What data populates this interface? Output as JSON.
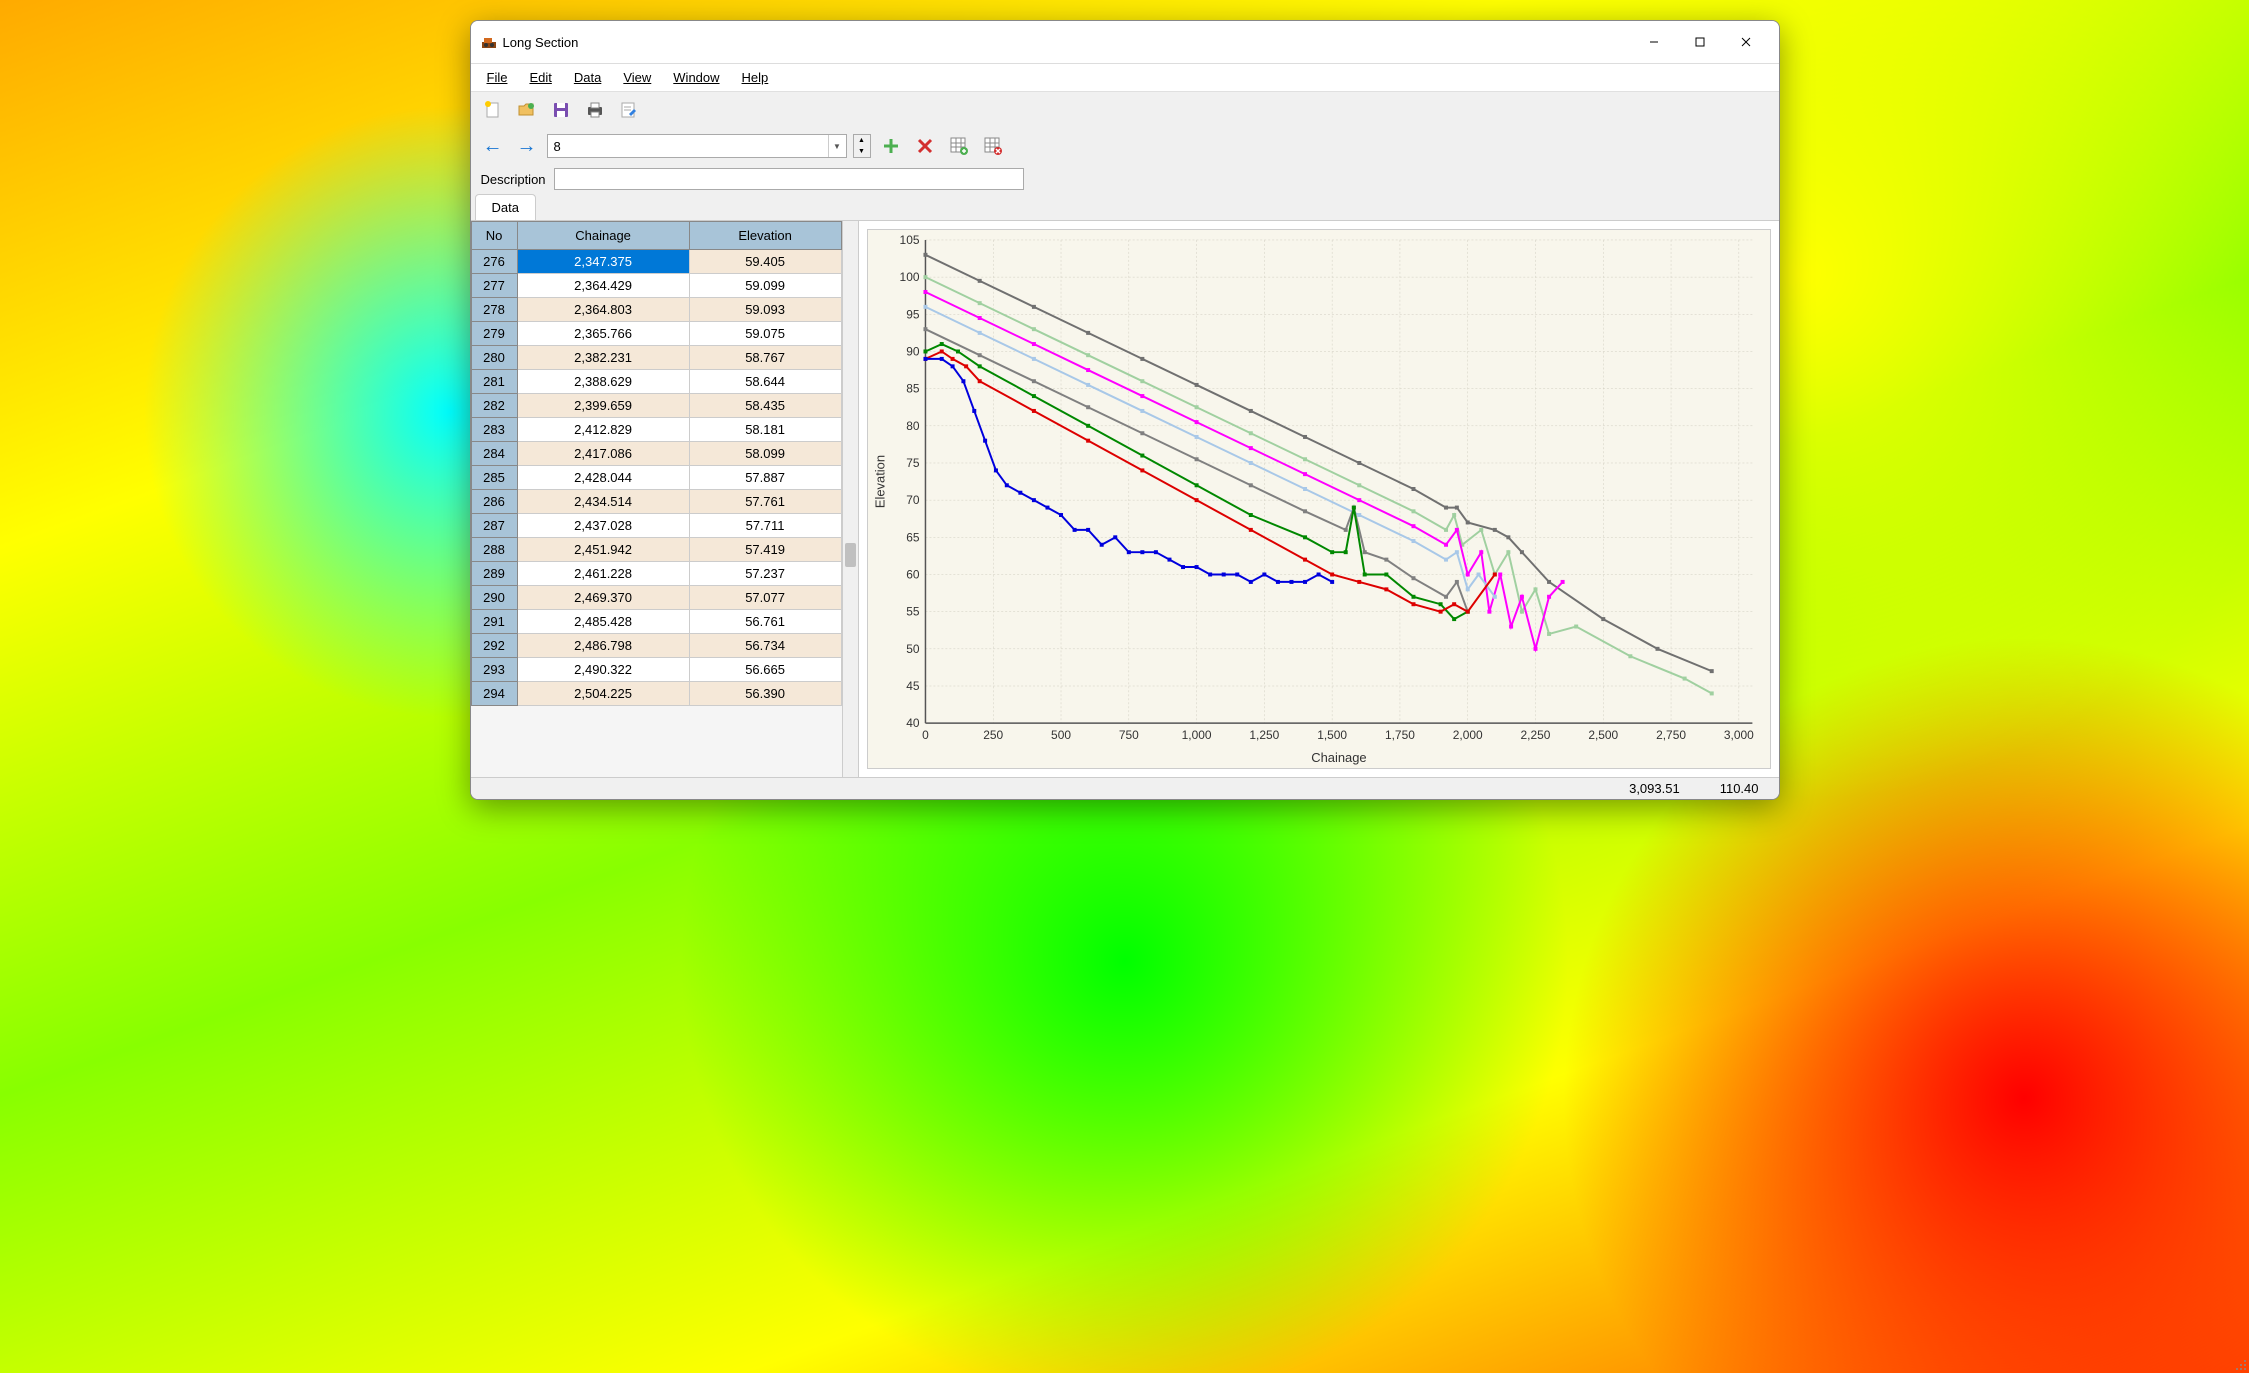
{
  "window": {
    "title": "Long Section"
  },
  "menu": {
    "file": "File",
    "edit": "Edit",
    "data": "Data",
    "view": "View",
    "window": "Window",
    "help": "Help"
  },
  "toolbar2": {
    "combo_value": "8"
  },
  "desc": {
    "label": "Description",
    "value": ""
  },
  "tab": {
    "data": "Data"
  },
  "table": {
    "columns": [
      "No",
      "Chainage",
      "Elevation"
    ],
    "rows": [
      {
        "no": "276",
        "chainage": "2,347.375",
        "elev": "59.405",
        "sel": true
      },
      {
        "no": "277",
        "chainage": "2,364.429",
        "elev": "59.099"
      },
      {
        "no": "278",
        "chainage": "2,364.803",
        "elev": "59.093"
      },
      {
        "no": "279",
        "chainage": "2,365.766",
        "elev": "59.075"
      },
      {
        "no": "280",
        "chainage": "2,382.231",
        "elev": "58.767"
      },
      {
        "no": "281",
        "chainage": "2,388.629",
        "elev": "58.644"
      },
      {
        "no": "282",
        "chainage": "2,399.659",
        "elev": "58.435"
      },
      {
        "no": "283",
        "chainage": "2,412.829",
        "elev": "58.181"
      },
      {
        "no": "284",
        "chainage": "2,417.086",
        "elev": "58.099"
      },
      {
        "no": "285",
        "chainage": "2,428.044",
        "elev": "57.887"
      },
      {
        "no": "286",
        "chainage": "2,434.514",
        "elev": "57.761"
      },
      {
        "no": "287",
        "chainage": "2,437.028",
        "elev": "57.711"
      },
      {
        "no": "288",
        "chainage": "2,451.942",
        "elev": "57.419"
      },
      {
        "no": "289",
        "chainage": "2,461.228",
        "elev": "57.237"
      },
      {
        "no": "290",
        "chainage": "2,469.370",
        "elev": "57.077"
      },
      {
        "no": "291",
        "chainage": "2,485.428",
        "elev": "56.761"
      },
      {
        "no": "292",
        "chainage": "2,486.798",
        "elev": "56.734"
      },
      {
        "no": "293",
        "chainage": "2,490.322",
        "elev": "56.665"
      },
      {
        "no": "294",
        "chainage": "2,504.225",
        "elev": "56.390"
      }
    ]
  },
  "chart": {
    "type": "line",
    "xlabel": "Chainage",
    "ylabel": "Elevation",
    "xlim": [
      0,
      3050
    ],
    "ylim": [
      40,
      105
    ],
    "xticks": [
      0,
      250,
      500,
      750,
      1000,
      1250,
      1500,
      1750,
      2000,
      2250,
      2500,
      2750,
      3000
    ],
    "xtick_labels": [
      "0",
      "250",
      "500",
      "750",
      "1,000",
      "1,250",
      "1,500",
      "1,750",
      "2,000",
      "2,250",
      "2,500",
      "2,750",
      "3,000"
    ],
    "yticks": [
      40,
      45,
      50,
      55,
      60,
      65,
      70,
      75,
      80,
      85,
      90,
      95,
      100,
      105
    ],
    "background_color": "#f8f6ec",
    "grid_color": "#d0cdc0",
    "axis_color": "#555555",
    "label_fontsize": 13,
    "tick_fontsize": 12,
    "line_width": 2,
    "marker_size": 2,
    "series": [
      {
        "name": "s1_gray_top",
        "color": "#707070",
        "data": [
          [
            0,
            103
          ],
          [
            200,
            99.5
          ],
          [
            400,
            96
          ],
          [
            600,
            92.5
          ],
          [
            800,
            89
          ],
          [
            1000,
            85.5
          ],
          [
            1200,
            82
          ],
          [
            1400,
            78.5
          ],
          [
            1600,
            75
          ],
          [
            1800,
            71.5
          ],
          [
            1920,
            69
          ],
          [
            1960,
            69
          ],
          [
            2000,
            67
          ],
          [
            2100,
            66
          ],
          [
            2150,
            65
          ],
          [
            2200,
            63
          ],
          [
            2300,
            59
          ],
          [
            2500,
            54
          ],
          [
            2700,
            50
          ],
          [
            2900,
            47
          ]
        ]
      },
      {
        "name": "s2_lightgreen",
        "color": "#a0d0a0",
        "data": [
          [
            0,
            100
          ],
          [
            200,
            96.5
          ],
          [
            400,
            93
          ],
          [
            600,
            89.5
          ],
          [
            800,
            86
          ],
          [
            1000,
            82.5
          ],
          [
            1200,
            79
          ],
          [
            1400,
            75.5
          ],
          [
            1600,
            72
          ],
          [
            1800,
            68.5
          ],
          [
            1920,
            66
          ],
          [
            1950,
            68
          ],
          [
            1980,
            64
          ],
          [
            2050,
            66
          ],
          [
            2100,
            60
          ],
          [
            2150,
            63
          ],
          [
            2200,
            55
          ],
          [
            2250,
            58
          ],
          [
            2300,
            52
          ],
          [
            2400,
            53
          ],
          [
            2600,
            49
          ],
          [
            2800,
            46
          ],
          [
            2900,
            44
          ]
        ]
      },
      {
        "name": "s3_magenta",
        "color": "#ff00ff",
        "data": [
          [
            0,
            98
          ],
          [
            200,
            94.5
          ],
          [
            400,
            91
          ],
          [
            600,
            87.5
          ],
          [
            800,
            84
          ],
          [
            1000,
            80.5
          ],
          [
            1200,
            77
          ],
          [
            1400,
            73.5
          ],
          [
            1600,
            70
          ],
          [
            1800,
            66.5
          ],
          [
            1920,
            64
          ],
          [
            1960,
            66
          ],
          [
            2000,
            60
          ],
          [
            2050,
            63
          ],
          [
            2080,
            55
          ],
          [
            2120,
            60
          ],
          [
            2160,
            53
          ],
          [
            2200,
            57
          ],
          [
            2250,
            50
          ],
          [
            2300,
            57
          ],
          [
            2350,
            59
          ]
        ]
      },
      {
        "name": "s4_lightblue",
        "color": "#a8c8e8",
        "data": [
          [
            0,
            96
          ],
          [
            200,
            92.5
          ],
          [
            400,
            89
          ],
          [
            600,
            85.5
          ],
          [
            800,
            82
          ],
          [
            1000,
            78.5
          ],
          [
            1200,
            75
          ],
          [
            1400,
            71.5
          ],
          [
            1600,
            68
          ],
          [
            1800,
            64.5
          ],
          [
            1920,
            62
          ],
          [
            1960,
            63
          ],
          [
            2000,
            58
          ],
          [
            2040,
            60
          ],
          [
            2100,
            57
          ]
        ]
      },
      {
        "name": "s5_gray_mid",
        "color": "#808080",
        "data": [
          [
            0,
            93
          ],
          [
            200,
            89.5
          ],
          [
            400,
            86
          ],
          [
            600,
            82.5
          ],
          [
            800,
            79
          ],
          [
            1000,
            75.5
          ],
          [
            1200,
            72
          ],
          [
            1400,
            68.5
          ],
          [
            1550,
            66
          ],
          [
            1580,
            69
          ],
          [
            1620,
            63
          ],
          [
            1700,
            62
          ],
          [
            1800,
            59.5
          ],
          [
            1920,
            57
          ],
          [
            1960,
            59
          ],
          [
            2000,
            55
          ]
        ]
      },
      {
        "name": "s6_green",
        "color": "#008800",
        "data": [
          [
            0,
            90
          ],
          [
            60,
            91
          ],
          [
            120,
            90
          ],
          [
            200,
            88
          ],
          [
            400,
            84
          ],
          [
            600,
            80
          ],
          [
            800,
            76
          ],
          [
            1000,
            72
          ],
          [
            1200,
            68
          ],
          [
            1400,
            65
          ],
          [
            1500,
            63
          ],
          [
            1550,
            63
          ],
          [
            1580,
            69
          ],
          [
            1620,
            60
          ],
          [
            1700,
            60
          ],
          [
            1800,
            57
          ],
          [
            1900,
            56
          ],
          [
            1950,
            54
          ],
          [
            2000,
            55
          ]
        ]
      },
      {
        "name": "s7_red",
        "color": "#dd0000",
        "data": [
          [
            0,
            89
          ],
          [
            60,
            90
          ],
          [
            100,
            89
          ],
          [
            150,
            88
          ],
          [
            200,
            86
          ],
          [
            400,
            82
          ],
          [
            600,
            78
          ],
          [
            800,
            74
          ],
          [
            1000,
            70
          ],
          [
            1200,
            66
          ],
          [
            1400,
            62
          ],
          [
            1500,
            60
          ],
          [
            1600,
            59
          ],
          [
            1700,
            58
          ],
          [
            1800,
            56
          ],
          [
            1900,
            55
          ],
          [
            1950,
            56
          ],
          [
            2000,
            55
          ],
          [
            2100,
            60
          ]
        ]
      },
      {
        "name": "s8_blue",
        "color": "#0000dd",
        "data": [
          [
            0,
            89
          ],
          [
            60,
            89
          ],
          [
            100,
            88
          ],
          [
            140,
            86
          ],
          [
            180,
            82
          ],
          [
            220,
            78
          ],
          [
            260,
            74
          ],
          [
            300,
            72
          ],
          [
            350,
            71
          ],
          [
            400,
            70
          ],
          [
            450,
            69
          ],
          [
            500,
            68
          ],
          [
            550,
            66
          ],
          [
            600,
            66
          ],
          [
            650,
            64
          ],
          [
            700,
            65
          ],
          [
            750,
            63
          ],
          [
            800,
            63
          ],
          [
            850,
            63
          ],
          [
            900,
            62
          ],
          [
            950,
            61
          ],
          [
            1000,
            61
          ],
          [
            1050,
            60
          ],
          [
            1100,
            60
          ],
          [
            1150,
            60
          ],
          [
            1200,
            59
          ],
          [
            1250,
            60
          ],
          [
            1300,
            59
          ],
          [
            1350,
            59
          ],
          [
            1400,
            59
          ],
          [
            1450,
            60
          ],
          [
            1500,
            59
          ]
        ]
      }
    ]
  },
  "status": {
    "x": "3,093.51",
    "y": "110.40"
  }
}
